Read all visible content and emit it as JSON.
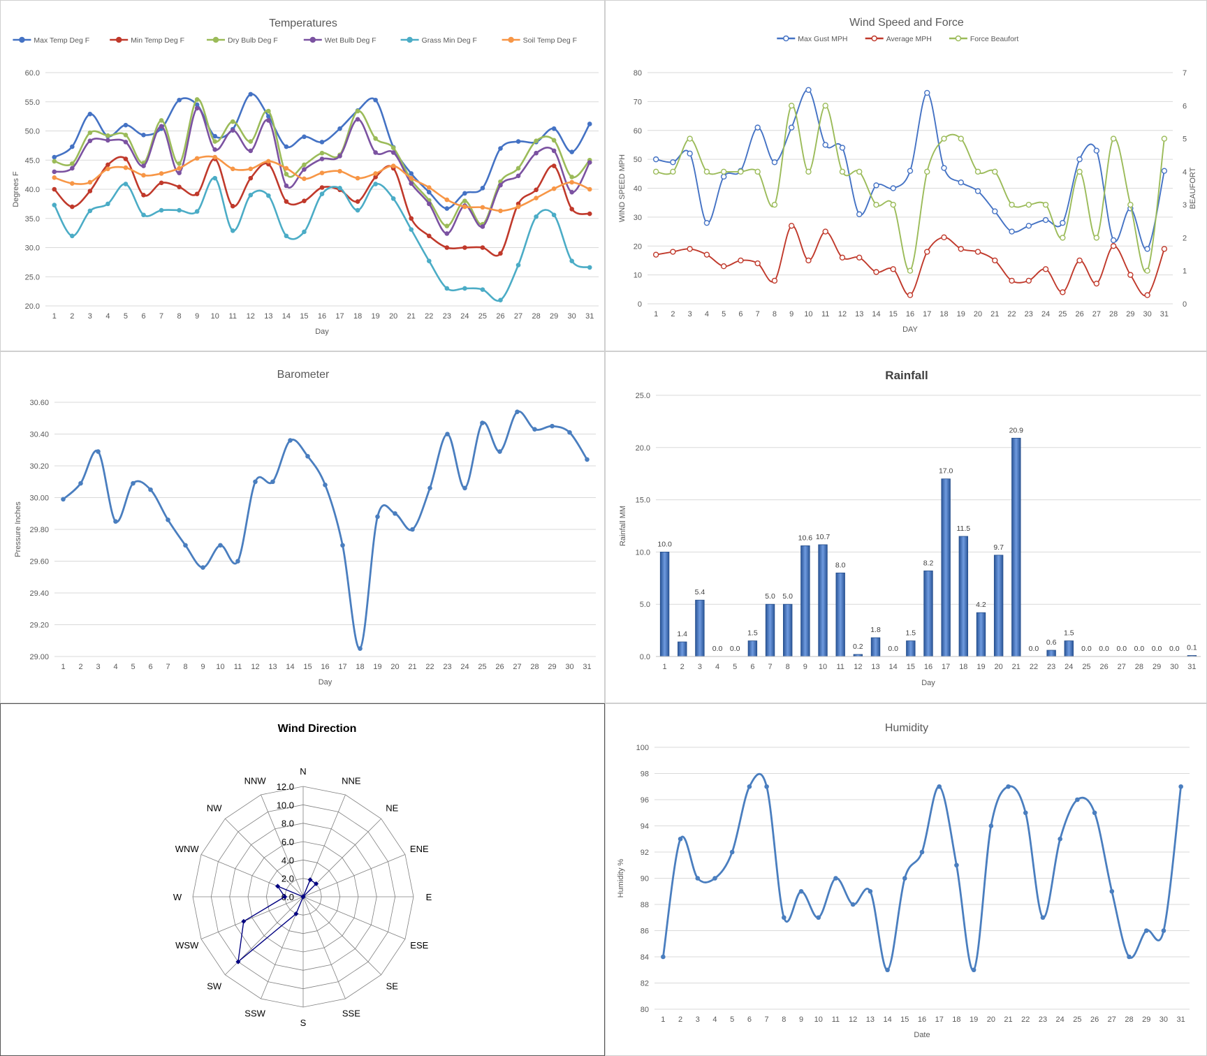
{
  "chart_data": [
    {
      "id": "temperatures",
      "type": "line",
      "title": "Temperatures",
      "xlabel": "Day",
      "ylabel": "Degrees F",
      "ylim": [
        20,
        60
      ],
      "yticks": [
        "20.0",
        "25.0",
        "30.0",
        "35.0",
        "40.0",
        "45.0",
        "50.0",
        "55.0",
        "60.0"
      ],
      "legend": "top",
      "grid": true,
      "x": [
        1,
        2,
        3,
        4,
        5,
        6,
        7,
        8,
        9,
        10,
        11,
        12,
        13,
        14,
        15,
        16,
        17,
        18,
        19,
        20,
        21,
        22,
        23,
        24,
        25,
        26,
        27,
        28,
        29,
        30,
        31
      ],
      "series": [
        {
          "name": "Max Temp Deg F",
          "color": "#4472c4",
          "values": [
            45.5,
            47.3,
            52.9,
            49.1,
            51,
            49.3,
            50.4,
            55.3,
            54.5,
            49.1,
            50.3,
            56.3,
            52.5,
            47.3,
            49,
            48.1,
            50.4,
            53.5,
            55.3,
            47.2,
            42.7,
            39.5,
            36.7,
            39.3,
            40.2,
            47,
            48.2,
            48.1,
            50.4,
            46.4,
            51.2
          ]
        },
        {
          "name": "Min Temp Deg F",
          "color": "#c0392b",
          "values": [
            40,
            37,
            39.7,
            44.2,
            45.2,
            39,
            41.1,
            40.4,
            39.2,
            45.2,
            37.1,
            41.9,
            44.3,
            37.9,
            38,
            40.3,
            39.9,
            37.9,
            42.1,
            43.6,
            35,
            32,
            30,
            30,
            30,
            29,
            37.5,
            39.9,
            44,
            36.6,
            35.8
          ]
        },
        {
          "name": "Dry Bulb Deg F",
          "color": "#9bbb59",
          "values": [
            44.8,
            44.4,
            49.7,
            49.2,
            49.3,
            44.5,
            51.8,
            44.4,
            55.4,
            48.2,
            51.6,
            48.2,
            53.4,
            42.6,
            44.2,
            46.2,
            45.9,
            53.4,
            48.7,
            47.1,
            41.6,
            38.1,
            33.7,
            38,
            34,
            41.3,
            43.6,
            48.3,
            48.4,
            42.1,
            45
          ]
        },
        {
          "name": "Wet Bulb Deg F",
          "color": "#7b52a1",
          "values": [
            43,
            43.6,
            48.3,
            48.4,
            48.1,
            44,
            50.8,
            42.8,
            53.9,
            46.8,
            50.1,
            46.6,
            51.8,
            40.6,
            43.4,
            45.2,
            45.7,
            52,
            46.3,
            46.3,
            41,
            37.5,
            32.4,
            37.2,
            33.6,
            40.7,
            42.3,
            46.2,
            46.6,
            39.5,
            44.6
          ]
        },
        {
          "name": "Grass Min Deg F",
          "color": "#4bacc6",
          "values": [
            37.3,
            32,
            36.3,
            37.5,
            40.9,
            35.6,
            36.4,
            36.4,
            36.2,
            41.9,
            32.9,
            39,
            38.9,
            32,
            32.7,
            39.2,
            40.2,
            36.4,
            40.9,
            38.4,
            33.1,
            27.7,
            23,
            23,
            22.8,
            21,
            27,
            35.3,
            35.6,
            27.7,
            26.6
          ]
        },
        {
          "name": "Soil Temp Deg F",
          "color": "#f79646",
          "values": [
            42,
            41,
            41.2,
            43.5,
            43.7,
            42.4,
            42.7,
            43.6,
            45.3,
            45.5,
            43.5,
            43.5,
            44.8,
            43.6,
            41.8,
            42.8,
            43.1,
            41.9,
            42.7,
            44,
            41.9,
            40.3,
            38.2,
            37,
            36.9,
            36.3,
            37,
            38.5,
            40.1,
            41.2,
            40
          ]
        }
      ]
    },
    {
      "id": "wind",
      "type": "line",
      "title": "Wind Speed and Force",
      "xlabel": "DAY",
      "ylabel": "WIND SPEED MPH",
      "y2label": "BEAUFORT",
      "ylim": [
        0,
        80
      ],
      "y2lim": [
        0,
        7
      ],
      "yticks": [
        "0",
        "10",
        "20",
        "30",
        "40",
        "50",
        "60",
        "70",
        "80"
      ],
      "y2ticks": [
        "0",
        "1",
        "2",
        "3",
        "4",
        "5",
        "6",
        "7"
      ],
      "legend": "top",
      "grid": true,
      "x": [
        1,
        2,
        3,
        4,
        5,
        6,
        7,
        8,
        9,
        10,
        11,
        12,
        13,
        14,
        15,
        16,
        17,
        18,
        19,
        20,
        21,
        22,
        23,
        24,
        25,
        26,
        27,
        28,
        29,
        30,
        31
      ],
      "series": [
        {
          "name": "Max Gust MPH",
          "color": "#4472c4",
          "axis": "left",
          "values": [
            50,
            49,
            52,
            28,
            44,
            46,
            61,
            49,
            61,
            74,
            55,
            54,
            31,
            41,
            40,
            46,
            73,
            47,
            42,
            39,
            32,
            25,
            27,
            29,
            28,
            50,
            53,
            22,
            33,
            19,
            46
          ]
        },
        {
          "name": "Average MPH",
          "color": "#c0392b",
          "axis": "left",
          "values": [
            17,
            18,
            19,
            17,
            13,
            15,
            14,
            8,
            27,
            15,
            25,
            16,
            16,
            11,
            12,
            3,
            18,
            23,
            19,
            18,
            15,
            8,
            8,
            12,
            4,
            15,
            7,
            20,
            10,
            3,
            19
          ]
        },
        {
          "name": "Force Beaufort",
          "color": "#9bbb59",
          "axis": "right",
          "values": [
            4,
            4,
            5,
            4,
            4,
            4,
            4,
            3,
            6,
            4,
            6,
            4,
            4,
            3,
            3,
            1,
            4,
            5,
            5,
            4,
            4,
            3,
            3,
            3,
            2,
            4,
            2,
            5,
            3,
            1,
            5
          ]
        }
      ]
    },
    {
      "id": "barometer",
      "type": "line",
      "title": "Barometer",
      "xlabel": "Day",
      "ylabel": "Pressure Inches",
      "ylim": [
        29.0,
        30.6
      ],
      "yticks": [
        "29.00",
        "29.20",
        "29.40",
        "29.60",
        "29.80",
        "30.00",
        "30.20",
        "30.40",
        "30.60"
      ],
      "grid": true,
      "x": [
        1,
        2,
        3,
        4,
        5,
        6,
        7,
        8,
        9,
        10,
        11,
        12,
        13,
        14,
        15,
        16,
        17,
        18,
        19,
        20,
        21,
        22,
        23,
        24,
        25,
        26,
        27,
        28,
        29,
        30,
        31
      ],
      "series": [
        {
          "name": "Pressure Inches",
          "color": "#4a7ebf",
          "values": [
            29.99,
            30.09,
            30.29,
            29.85,
            30.09,
            30.05,
            29.86,
            29.7,
            29.56,
            29.7,
            29.6,
            30.1,
            30.1,
            30.36,
            30.26,
            30.08,
            29.7,
            29.05,
            29.88,
            29.9,
            29.8,
            30.06,
            30.4,
            30.06,
            30.47,
            30.29,
            30.54,
            30.43,
            30.45,
            30.41,
            30.24
          ]
        }
      ]
    },
    {
      "id": "rainfall",
      "type": "bar",
      "title": "Rainfall",
      "xlabel": "Day",
      "ylabel": "Rainfall MM",
      "ylim": [
        0,
        25
      ],
      "yticks": [
        "0.0",
        "5.0",
        "10.0",
        "15.0",
        "20.0",
        "25.0"
      ],
      "grid": true,
      "categories": [
        "1",
        "2",
        "3",
        "4",
        "5",
        "6",
        "7",
        "8",
        "9",
        "10",
        "11",
        "12",
        "13",
        "14",
        "15",
        "16",
        "17",
        "18",
        "19",
        "20",
        "21",
        "22",
        "23",
        "24",
        "25",
        "26",
        "27",
        "28",
        "29",
        "30",
        "31"
      ],
      "values": [
        10.0,
        1.4,
        5.4,
        0.0,
        0.0,
        1.5,
        5.0,
        5.0,
        10.6,
        10.7,
        8.0,
        0.2,
        1.8,
        0.0,
        1.5,
        8.2,
        17.0,
        11.5,
        4.2,
        9.7,
        20.9,
        0.0,
        0.6,
        1.5,
        0.0,
        0.0,
        0.0,
        0.0,
        0.0,
        0.0,
        0.1
      ],
      "labels": [
        "10.0",
        "1.4",
        "5.4",
        "0.0",
        "0.0",
        "1.5",
        "5.0",
        "5.0",
        "10.6",
        "10.7",
        "8.0",
        "0.2",
        "1.8",
        "0.0",
        "1.5",
        "8.2",
        "17.0",
        "11.5",
        "4.2",
        "9.7",
        "20.9",
        "0.0",
        "0.6",
        "1.5",
        "0.0",
        "0.0",
        "0.0",
        "0.0",
        "0.0",
        "0.0",
        "0.1"
      ],
      "color": "#3b6cb0"
    },
    {
      "id": "wind-direction",
      "type": "radar",
      "title": "Wind Direction",
      "rlim": [
        0,
        12
      ],
      "rticks": [
        "0.0",
        "2.0",
        "4.0",
        "6.0",
        "8.0",
        "10.0",
        "12.0"
      ],
      "categories": [
        "N",
        "NNE",
        "NE",
        "ENE",
        "E",
        "ESE",
        "SE",
        "SSE",
        "S",
        "SSW",
        "SW",
        "WSW",
        "W",
        "WNW",
        "NW",
        "NNW"
      ],
      "values": [
        0,
        2,
        2,
        0,
        0,
        0,
        0,
        0,
        0,
        2,
        10,
        7,
        2,
        3,
        0,
        0
      ],
      "color": "#000080"
    },
    {
      "id": "humidity",
      "type": "line",
      "title": "Humidity",
      "xlabel": "Date",
      "ylabel": "Humidity %",
      "ylim": [
        80,
        100
      ],
      "yticks": [
        "80",
        "82",
        "84",
        "86",
        "88",
        "90",
        "92",
        "94",
        "96",
        "98",
        "100"
      ],
      "grid": true,
      "x": [
        1,
        2,
        3,
        4,
        5,
        6,
        7,
        8,
        9,
        10,
        11,
        12,
        13,
        14,
        15,
        16,
        17,
        18,
        19,
        20,
        21,
        22,
        23,
        24,
        25,
        26,
        27,
        28,
        29,
        30,
        31
      ],
      "series": [
        {
          "name": "Humidity %",
          "color": "#4a7ebf",
          "values": [
            84,
            93,
            90,
            90,
            92,
            97,
            97,
            87,
            89,
            87,
            90,
            88,
            89,
            83,
            90,
            92,
            97,
            91,
            83,
            94,
            97,
            95,
            87,
            93,
            96,
            95,
            89,
            84,
            86,
            86,
            97
          ]
        }
      ]
    }
  ]
}
